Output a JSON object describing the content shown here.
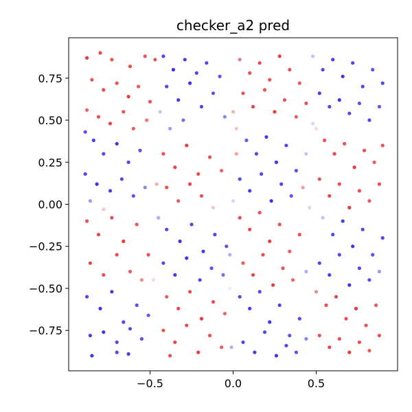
{
  "chart_data": {
    "type": "scatter",
    "title": "checker_a2 pred",
    "xlabel": "",
    "ylabel": "",
    "xlim": [
      -0.99,
      0.99
    ],
    "ylim": [
      -0.99,
      0.99
    ],
    "xticks": [
      -0.5,
      0.0,
      0.5
    ],
    "xtick_labels": [
      "−0.5",
      "0.0",
      "0.5"
    ],
    "yticks": [
      -0.75,
      -0.5,
      -0.25,
      0.0,
      0.25,
      0.5,
      0.75
    ],
    "ytick_labels": [
      "−0.75",
      "−0.50",
      "−0.25",
      "0.00",
      "0.25",
      "0.50",
      "0.75"
    ],
    "grid": false,
    "legend": false,
    "colors": {
      "positive": "#e8191c",
      "negative": "#1a10e6",
      "neutral": "#ffffff"
    },
    "colormap": "bwr",
    "points": [
      [
        -0.88,
        0.87,
        1.0
      ],
      [
        -0.8,
        0.9,
        0.95
      ],
      [
        -0.73,
        0.86,
        0.9
      ],
      [
        -0.62,
        0.82,
        0.92
      ],
      [
        -0.53,
        0.88,
        0.88
      ],
      [
        -0.47,
        0.86,
        0.9
      ],
      [
        -0.85,
        0.74,
        0.9
      ],
      [
        -0.78,
        0.68,
        0.95
      ],
      [
        -0.7,
        0.72,
        0.88
      ],
      [
        -0.63,
        0.64,
        1.0
      ],
      [
        -0.57,
        0.7,
        0.85
      ],
      [
        -0.5,
        0.61,
        0.9
      ],
      [
        -0.88,
        0.56,
        0.8
      ],
      [
        -0.81,
        0.52,
        0.9
      ],
      [
        -0.74,
        0.48,
        0.95
      ],
      [
        -0.66,
        0.55,
        0.9
      ],
      [
        -0.6,
        0.45,
        0.85
      ],
      [
        -0.52,
        0.5,
        0.7
      ],
      [
        -0.89,
        0.43,
        -0.85
      ],
      [
        -0.84,
        0.38,
        -0.95
      ],
      [
        -0.78,
        0.3,
        -0.9
      ],
      [
        -0.7,
        0.36,
        -1.0
      ],
      [
        -0.63,
        0.25,
        -0.9
      ],
      [
        -0.56,
        0.32,
        -0.85
      ],
      [
        -0.89,
        0.18,
        -0.9
      ],
      [
        -0.82,
        0.12,
        -1.0
      ],
      [
        -0.74,
        0.08,
        -0.95
      ],
      [
        -0.67,
        0.15,
        -0.9
      ],
      [
        -0.6,
        0.05,
        -0.85
      ],
      [
        -0.53,
        0.1,
        -0.6
      ],
      [
        -0.86,
        0.02,
        -0.5
      ],
      [
        -0.78,
        -0.03,
        0.3
      ],
      [
        -0.88,
        -0.1,
        0.9
      ],
      [
        -0.81,
        -0.18,
        0.95
      ],
      [
        -0.73,
        -0.08,
        0.9
      ],
      [
        -0.66,
        -0.22,
        1.0
      ],
      [
        -0.58,
        -0.12,
        0.85
      ],
      [
        -0.51,
        -0.3,
        0.9
      ],
      [
        -0.86,
        -0.35,
        0.95
      ],
      [
        -0.78,
        -0.42,
        0.9
      ],
      [
        -0.7,
        -0.3,
        0.9
      ],
      [
        -0.62,
        -0.4,
        0.85
      ],
      [
        -0.55,
        -0.45,
        0.6
      ],
      [
        -0.88,
        -0.55,
        -0.9
      ],
      [
        -0.8,
        -0.62,
        -1.0
      ],
      [
        -0.73,
        -0.52,
        -0.95
      ],
      [
        -0.66,
        -0.7,
        -0.9
      ],
      [
        -0.58,
        -0.6,
        -0.85
      ],
      [
        -0.51,
        -0.66,
        -0.8
      ],
      [
        -0.86,
        -0.78,
        -0.95
      ],
      [
        -0.78,
        -0.76,
        -1.0
      ],
      [
        -0.7,
        -0.82,
        -0.9
      ],
      [
        -0.62,
        -0.74,
        -0.9
      ],
      [
        -0.55,
        -0.8,
        -0.85
      ],
      [
        -0.85,
        -0.9,
        -1.0
      ],
      [
        -0.7,
        -0.88,
        -0.9
      ],
      [
        -0.63,
        -0.89,
        -0.95
      ],
      [
        -0.42,
        0.88,
        -0.9
      ],
      [
        -0.36,
        0.8,
        -1.0
      ],
      [
        -0.29,
        0.86,
        -0.95
      ],
      [
        -0.22,
        0.78,
        -0.9
      ],
      [
        -0.16,
        0.84,
        -0.9
      ],
      [
        -0.08,
        0.76,
        -0.85
      ],
      [
        -0.4,
        0.7,
        -0.9
      ],
      [
        -0.33,
        0.62,
        -0.95
      ],
      [
        -0.26,
        0.72,
        -1.0
      ],
      [
        -0.19,
        0.58,
        -0.9
      ],
      [
        -0.12,
        0.66,
        -0.85
      ],
      [
        -0.05,
        0.52,
        -0.6
      ],
      [
        -0.38,
        0.45,
        -0.5
      ],
      [
        -0.44,
        0.55,
        -0.3
      ],
      [
        -0.3,
        0.5,
        -0.7
      ],
      [
        -0.42,
        0.3,
        0.9
      ],
      [
        -0.35,
        0.22,
        0.95
      ],
      [
        -0.28,
        0.35,
        1.0
      ],
      [
        -0.21,
        0.18,
        0.9
      ],
      [
        -0.14,
        0.28,
        0.9
      ],
      [
        -0.07,
        0.2,
        0.8
      ],
      [
        -0.4,
        0.1,
        0.9
      ],
      [
        -0.33,
        0.02,
        0.85
      ],
      [
        -0.26,
        0.12,
        0.95
      ],
      [
        -0.19,
        0.05,
        0.9
      ],
      [
        -0.12,
        -0.02,
        0.3
      ],
      [
        -0.45,
        -0.08,
        -0.4
      ],
      [
        -0.4,
        -0.15,
        -0.9
      ],
      [
        -0.32,
        -0.22,
        -1.0
      ],
      [
        -0.25,
        -0.12,
        -0.9
      ],
      [
        -0.18,
        -0.28,
        -0.95
      ],
      [
        -0.11,
        -0.18,
        -0.9
      ],
      [
        -0.04,
        -0.25,
        -0.85
      ],
      [
        -0.42,
        -0.35,
        -0.9
      ],
      [
        -0.35,
        -0.42,
        -0.95
      ],
      [
        -0.28,
        -0.32,
        -1.0
      ],
      [
        -0.2,
        -0.45,
        -0.9
      ],
      [
        -0.13,
        -0.38,
        -0.85
      ],
      [
        -0.06,
        -0.42,
        -0.7
      ],
      [
        -0.4,
        -0.55,
        0.85
      ],
      [
        -0.33,
        -0.62,
        0.95
      ],
      [
        -0.26,
        -0.52,
        0.9
      ],
      [
        -0.19,
        -0.68,
        1.0
      ],
      [
        -0.12,
        -0.58,
        0.9
      ],
      [
        -0.05,
        -0.65,
        0.8
      ],
      [
        -0.42,
        -0.75,
        0.9
      ],
      [
        -0.35,
        -0.82,
        0.95
      ],
      [
        -0.28,
        -0.72,
        0.9
      ],
      [
        -0.21,
        -0.88,
        1.0
      ],
      [
        -0.14,
        -0.78,
        0.9
      ],
      [
        -0.07,
        -0.85,
        0.85
      ],
      [
        -0.38,
        -0.9,
        0.9
      ],
      [
        -0.01,
        -0.85,
        -0.4
      ],
      [
        0.04,
        0.86,
        0.7
      ],
      [
        0.1,
        0.78,
        0.9
      ],
      [
        0.16,
        0.84,
        0.95
      ],
      [
        0.22,
        0.74,
        0.9
      ],
      [
        0.28,
        0.88,
        1.0
      ],
      [
        0.34,
        0.8,
        0.9
      ],
      [
        0.4,
        0.72,
        0.85
      ],
      [
        0.06,
        0.66,
        0.9
      ],
      [
        0.12,
        0.58,
        0.95
      ],
      [
        0.19,
        0.68,
        0.9
      ],
      [
        0.25,
        0.55,
        1.0
      ],
      [
        0.31,
        0.62,
        0.9
      ],
      [
        0.38,
        0.52,
        0.85
      ],
      [
        0.44,
        0.6,
        0.9
      ],
      [
        0.02,
        0.45,
        0.3
      ],
      [
        0.08,
        0.38,
        -0.8
      ],
      [
        0.14,
        0.3,
        -0.9
      ],
      [
        0.2,
        0.4,
        -0.95
      ],
      [
        0.26,
        0.25,
        -1.0
      ],
      [
        0.32,
        0.35,
        -0.9
      ],
      [
        0.38,
        0.2,
        -0.85
      ],
      [
        0.44,
        0.3,
        -0.3
      ],
      [
        0.04,
        0.15,
        -0.9
      ],
      [
        0.1,
        0.08,
        -0.95
      ],
      [
        0.17,
        0.18,
        -0.9
      ],
      [
        0.23,
        0.02,
        -1.0
      ],
      [
        0.29,
        0.12,
        -0.9
      ],
      [
        0.35,
        0.05,
        -0.85
      ],
      [
        0.42,
        0.1,
        0.5
      ],
      [
        0.04,
        -0.08,
        0.9
      ],
      [
        0.1,
        -0.15,
        0.95
      ],
      [
        0.16,
        -0.05,
        0.9
      ],
      [
        0.22,
        -0.22,
        1.0
      ],
      [
        0.28,
        -0.12,
        0.9
      ],
      [
        0.34,
        -0.28,
        0.85
      ],
      [
        0.4,
        -0.18,
        0.9
      ],
      [
        0.06,
        -0.35,
        0.85
      ],
      [
        0.12,
        -0.42,
        0.95
      ],
      [
        0.18,
        -0.3,
        0.9
      ],
      [
        0.24,
        -0.48,
        1.0
      ],
      [
        0.3,
        -0.38,
        0.9
      ],
      [
        0.36,
        -0.45,
        0.8
      ],
      [
        0.44,
        -0.4,
        -0.4
      ],
      [
        0.04,
        -0.55,
        -0.9
      ],
      [
        0.1,
        -0.62,
        -0.95
      ],
      [
        0.16,
        -0.52,
        -0.9
      ],
      [
        0.22,
        -0.7,
        -1.0
      ],
      [
        0.28,
        -0.6,
        -0.9
      ],
      [
        0.34,
        -0.78,
        -0.85
      ],
      [
        0.4,
        -0.68,
        -0.9
      ],
      [
        0.06,
        -0.82,
        -0.9
      ],
      [
        0.13,
        -0.88,
        -0.95
      ],
      [
        0.19,
        -0.76,
        -0.9
      ],
      [
        0.26,
        -0.9,
        -1.0
      ],
      [
        0.32,
        -0.84,
        -0.9
      ],
      [
        0.38,
        -0.88,
        -0.85
      ],
      [
        0.44,
        -0.8,
        -0.6
      ],
      [
        0.48,
        0.88,
        -0.3
      ],
      [
        0.54,
        0.8,
        -0.9
      ],
      [
        0.6,
        0.86,
        -0.95
      ],
      [
        0.66,
        0.76,
        -1.0
      ],
      [
        0.72,
        0.84,
        -0.9
      ],
      [
        0.78,
        0.7,
        -0.9
      ],
      [
        0.84,
        0.8,
        -0.85
      ],
      [
        0.9,
        0.72,
        -0.9
      ],
      [
        0.52,
        0.66,
        -0.95
      ],
      [
        0.58,
        0.58,
        -0.9
      ],
      [
        0.64,
        0.62,
        -1.0
      ],
      [
        0.7,
        0.54,
        -0.9
      ],
      [
        0.76,
        0.6,
        -0.85
      ],
      [
        0.82,
        0.5,
        -0.9
      ],
      [
        0.88,
        0.58,
        -0.8
      ],
      [
        0.5,
        0.45,
        0.2
      ],
      [
        0.55,
        0.38,
        0.9
      ],
      [
        0.61,
        0.3,
        0.95
      ],
      [
        0.67,
        0.36,
        0.9
      ],
      [
        0.73,
        0.22,
        1.0
      ],
      [
        0.79,
        0.32,
        0.9
      ],
      [
        0.85,
        0.25,
        0.85
      ],
      [
        0.9,
        0.35,
        0.9
      ],
      [
        0.52,
        0.15,
        0.9
      ],
      [
        0.58,
        0.05,
        0.95
      ],
      [
        0.64,
        0.12,
        0.9
      ],
      [
        0.7,
        -0.02,
        1.0
      ],
      [
        0.76,
        0.08,
        0.9
      ],
      [
        0.82,
        0.02,
        0.85
      ],
      [
        0.88,
        0.12,
        0.9
      ],
      [
        0.54,
        -0.08,
        -0.3
      ],
      [
        0.6,
        -0.18,
        -0.9
      ],
      [
        0.66,
        -0.1,
        -0.95
      ],
      [
        0.72,
        -0.25,
        -1.0
      ],
      [
        0.78,
        -0.15,
        -0.9
      ],
      [
        0.84,
        -0.3,
        -0.85
      ],
      [
        0.9,
        -0.2,
        -0.9
      ],
      [
        0.52,
        -0.35,
        -0.9
      ],
      [
        0.58,
        -0.42,
        -0.95
      ],
      [
        0.64,
        -0.3,
        -0.9
      ],
      [
        0.7,
        -0.48,
        -1.0
      ],
      [
        0.76,
        -0.38,
        -0.9
      ],
      [
        0.82,
        -0.45,
        -0.85
      ],
      [
        0.88,
        -0.4,
        -0.5
      ],
      [
        0.5,
        -0.52,
        0.6
      ],
      [
        0.56,
        -0.6,
        0.9
      ],
      [
        0.62,
        -0.55,
        0.95
      ],
      [
        0.68,
        -0.68,
        0.9
      ],
      [
        0.74,
        -0.62,
        1.0
      ],
      [
        0.8,
        -0.72,
        0.9
      ],
      [
        0.86,
        -0.6,
        0.85
      ],
      [
        0.52,
        -0.78,
        0.9
      ],
      [
        0.58,
        -0.85,
        0.95
      ],
      [
        0.64,
        -0.8,
        0.9
      ],
      [
        0.7,
        -0.88,
        1.0
      ],
      [
        0.76,
        -0.82,
        0.9
      ],
      [
        0.82,
        -0.87,
        0.85
      ],
      [
        0.88,
        -0.78,
        0.9
      ],
      [
        -0.46,
        0.12,
        0.4
      ],
      [
        0.0,
        0.02,
        -0.2
      ],
      [
        -0.02,
        -0.5,
        0.1
      ],
      [
        0.46,
        -0.02,
        -0.2
      ],
      [
        0.0,
        0.55,
        0.4
      ],
      [
        -0.48,
        -0.45,
        0.2
      ],
      [
        0.48,
        0.48,
        -0.2
      ],
      [
        -0.02,
        -0.3,
        -0.4
      ],
      [
        0.02,
        0.3,
        0.5
      ]
    ]
  }
}
